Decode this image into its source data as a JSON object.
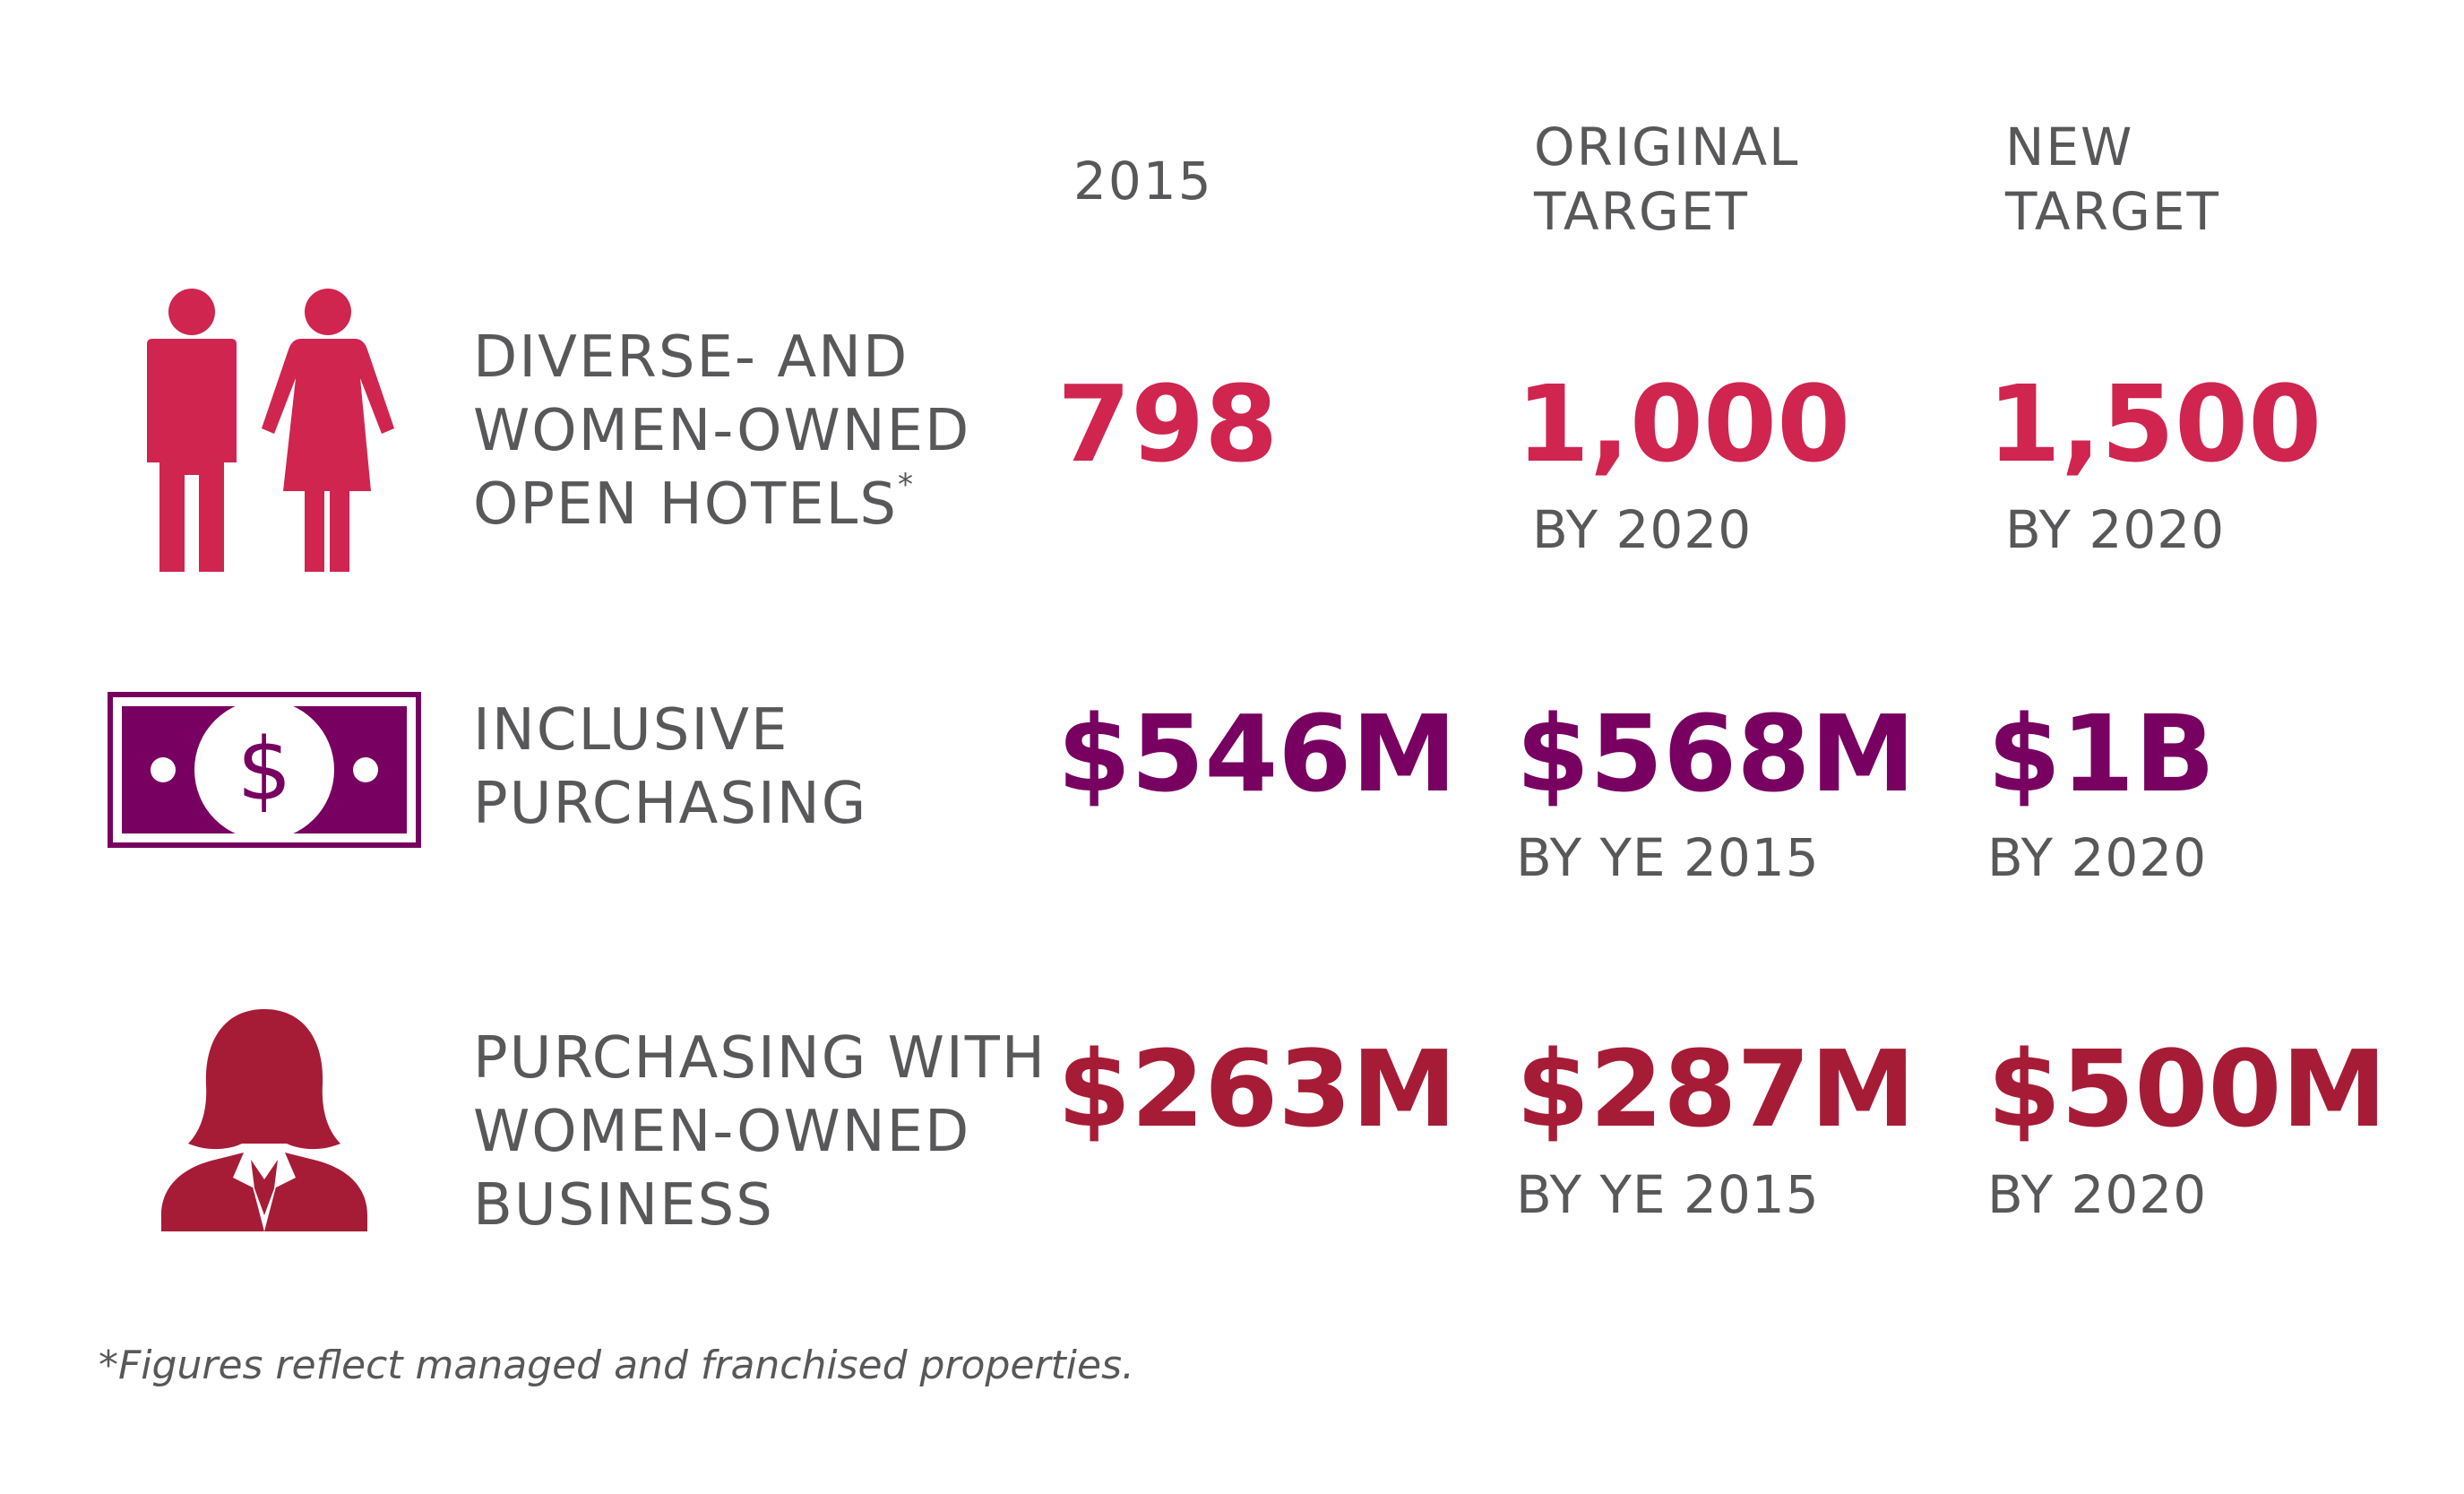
{
  "colors": {
    "row1": "#d0254f",
    "row2": "#770061",
    "row3": "#a61c36",
    "text": "#58585a"
  },
  "headers": {
    "col_2015": "2015",
    "col_original": [
      "ORIGINAL",
      "TARGET"
    ],
    "col_new": [
      "NEW",
      "TARGET"
    ]
  },
  "rows": [
    {
      "icon": "people-icon",
      "label": [
        "DIVERSE- AND",
        "WOMEN-OWNED",
        "OPEN HOTELS"
      ],
      "label_mark": "*",
      "value_2015": "798",
      "original": "1,000",
      "original_sub": "BY 2020",
      "new": "1,500",
      "new_sub": "BY 2020"
    },
    {
      "icon": "dollar-bill-icon",
      "label": [
        "INCLUSIVE",
        "PURCHASING"
      ],
      "value_2015": "$546M",
      "original": "$568M",
      "original_sub": "BY YE 2015",
      "new": "$1B",
      "new_sub": "BY 2020"
    },
    {
      "icon": "businesswoman-icon",
      "label": [
        "PURCHASING WITH",
        "WOMEN-OWNED",
        "BUSINESS"
      ],
      "value_2015": "$263M",
      "original": "$287M",
      "original_sub": "BY YE 2015",
      "new": "$500M",
      "new_sub": "BY 2020"
    }
  ],
  "footnote": "*Figures reflect managed and franchised properties."
}
